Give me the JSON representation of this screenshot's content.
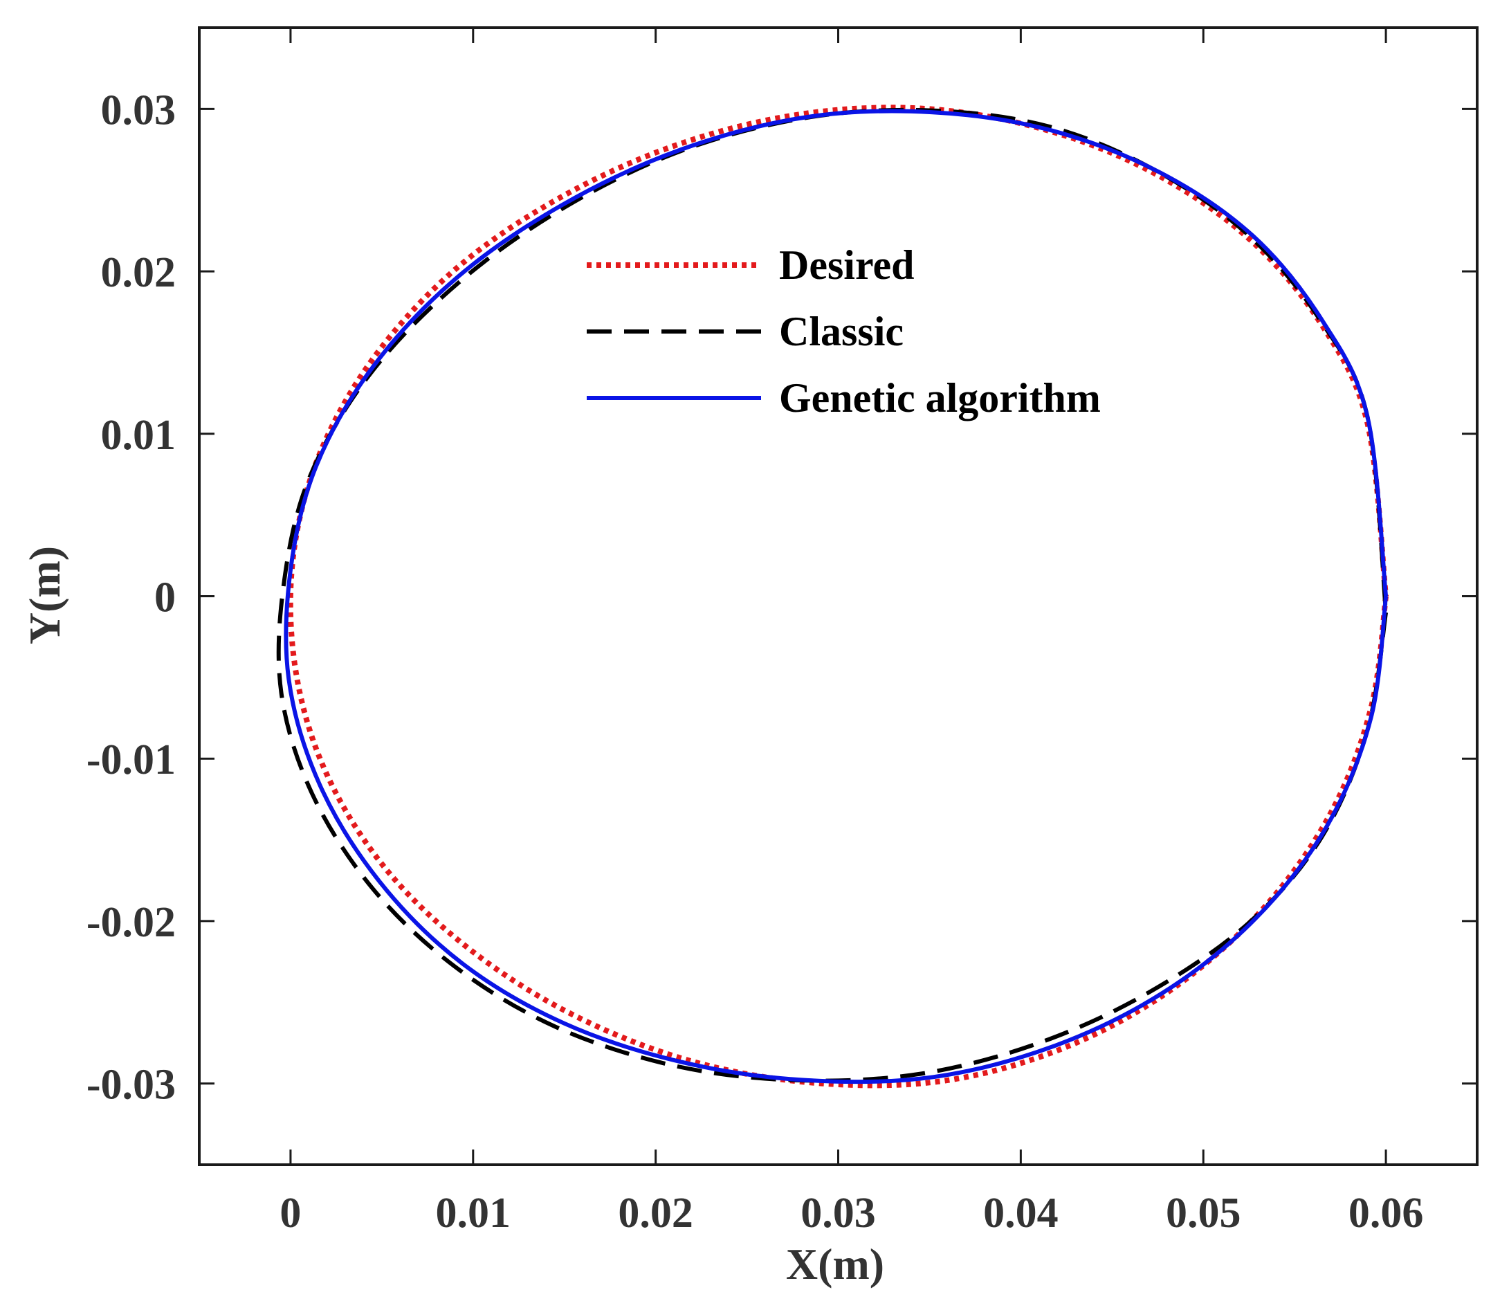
{
  "chart_data": {
    "type": "line",
    "title": "",
    "xlabel": "X(m)",
    "ylabel": "Y(m)",
    "xlim": [
      -0.005,
      0.065
    ],
    "ylim": [
      -0.035,
      0.035
    ],
    "xticks": [
      0,
      0.01,
      0.02,
      0.03,
      0.04,
      0.05,
      0.06
    ],
    "xtick_labels": [
      "0",
      "0.01",
      "0.02",
      "0.03",
      "0.04",
      "0.05",
      "0.06"
    ],
    "yticks": [
      0.03,
      0.02,
      0.01,
      0,
      -0.01,
      -0.02,
      -0.03
    ],
    "ytick_labels": [
      "0.03",
      "0.02",
      "0.01",
      "0",
      "-0.01",
      "-0.02",
      "-0.03"
    ],
    "grid": false,
    "legend_position": "top-center",
    "series": [
      {
        "name": "Desired",
        "color": "#e31a1c",
        "style": "dotted",
        "x": [
          0.06,
          0.0592,
          0.057,
          0.0533,
          0.0484,
          0.0426,
          0.036,
          0.0291,
          0.0222,
          0.0157,
          0.01,
          0.0053,
          0.002,
          0.0003,
          0.0001,
          0.0015,
          0.0045,
          0.009,
          0.0147,
          0.0212,
          0.0281,
          0.035,
          0.0417,
          0.0477,
          0.0528,
          0.0566,
          0.059,
          0.06
        ],
        "y": [
          0.0,
          -0.0068,
          -0.0133,
          -0.0192,
          -0.0241,
          -0.0277,
          -0.0298,
          -0.03,
          -0.0287,
          -0.0259,
          -0.0219,
          -0.0169,
          -0.011,
          -0.0047,
          0.002,
          0.0085,
          0.0146,
          0.0201,
          0.0245,
          0.0278,
          0.0297,
          0.03,
          0.0286,
          0.0258,
          0.0217,
          0.0165,
          0.0106,
          0.0
        ]
      },
      {
        "name": "Classic",
        "color": "#000000",
        "style": "dashed",
        "x": [
          0.06,
          0.059,
          0.0565,
          0.0525,
          0.047,
          0.041,
          0.0345,
          0.0277,
          0.021,
          0.0145,
          0.009,
          0.0045,
          0.0012,
          -0.0005,
          -0.0004,
          0.001,
          0.0043,
          0.0092,
          0.0151,
          0.0216,
          0.0285,
          0.0352,
          0.0416,
          0.0474,
          0.0525,
          0.0564,
          0.059,
          0.06
        ],
        "y": [
          -0.001,
          -0.0082,
          -0.0148,
          -0.0201,
          -0.0244,
          -0.0275,
          -0.0294,
          -0.0298,
          -0.0289,
          -0.0265,
          -0.0228,
          -0.018,
          -0.0122,
          -0.006,
          0.0005,
          0.0072,
          0.0136,
          0.0193,
          0.024,
          0.0275,
          0.0295,
          0.0299,
          0.0289,
          0.0262,
          0.0222,
          0.017,
          0.011,
          -0.001
        ]
      },
      {
        "name": "Genetic algorithm",
        "color": "#0a14e6",
        "style": "solid",
        "x": [
          0.06,
          0.0592,
          0.0568,
          0.0529,
          0.0478,
          0.0418,
          0.0352,
          0.0283,
          0.0215,
          0.015,
          0.0094,
          0.0049,
          0.0016,
          -0.0001,
          0.0,
          0.0014,
          0.0045,
          0.0091,
          0.0149,
          0.0214,
          0.0283,
          0.0351,
          0.0416,
          0.0476,
          0.0527,
          0.0565,
          0.059,
          0.06
        ],
        "y": [
          0.0,
          -0.0074,
          -0.0141,
          -0.0198,
          -0.0244,
          -0.0277,
          -0.0296,
          -0.0298,
          -0.0287,
          -0.0263,
          -0.0226,
          -0.0176,
          -0.0116,
          -0.0051,
          0.0016,
          0.008,
          0.0141,
          0.0196,
          0.0241,
          0.0275,
          0.0295,
          0.0298,
          0.0287,
          0.0261,
          0.0222,
          0.017,
          0.011,
          0.0
        ]
      }
    ]
  }
}
